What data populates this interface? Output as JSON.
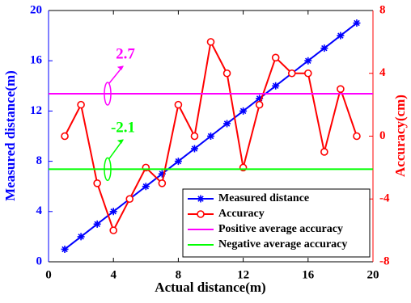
{
  "chart_data": {
    "type": "line",
    "xlabel": "Actual distance(m)",
    "ylabel": "Measured distance(m)",
    "y2label": "Accuracy(cm)",
    "x": [
      1,
      2,
      3,
      4,
      5,
      6,
      7,
      8,
      9,
      10,
      11,
      12,
      13,
      14,
      15,
      16,
      17,
      18,
      19
    ],
    "xlim": [
      0,
      20
    ],
    "xticks": [
      0,
      4,
      8,
      12,
      16,
      20
    ],
    "ylim": [
      0,
      20
    ],
    "yticks": [
      0,
      4,
      8,
      12,
      16,
      20
    ],
    "y2lim": [
      -8,
      8
    ],
    "y2ticks": [
      -8,
      -4,
      0,
      4,
      8
    ],
    "legend": "lower right",
    "series": [
      {
        "name": "Measured distance",
        "color": "#0000ff",
        "marker": "asterisk",
        "axis": "y",
        "values": [
          1,
          2,
          3,
          4,
          5,
          6,
          7,
          8,
          9,
          10,
          11,
          12,
          13,
          14,
          15,
          16,
          17,
          18,
          19
        ]
      },
      {
        "name": "Accuracy",
        "color": "#ff0000",
        "marker": "circle",
        "axis": "y2",
        "values": [
          0,
          2,
          -3,
          -6,
          -4,
          -2,
          -3,
          2,
          0,
          6,
          4,
          -2,
          2,
          5,
          4,
          4,
          -1,
          3,
          0
        ]
      },
      {
        "name": "Positive average accuracy",
        "color": "#ff00ff",
        "axis": "y2",
        "value": 2.7
      },
      {
        "name": "Negative average accuracy",
        "color": "#00ff00",
        "axis": "y2",
        "value": -2.1
      }
    ],
    "annotations": [
      "2.7",
      "-2.1"
    ]
  }
}
